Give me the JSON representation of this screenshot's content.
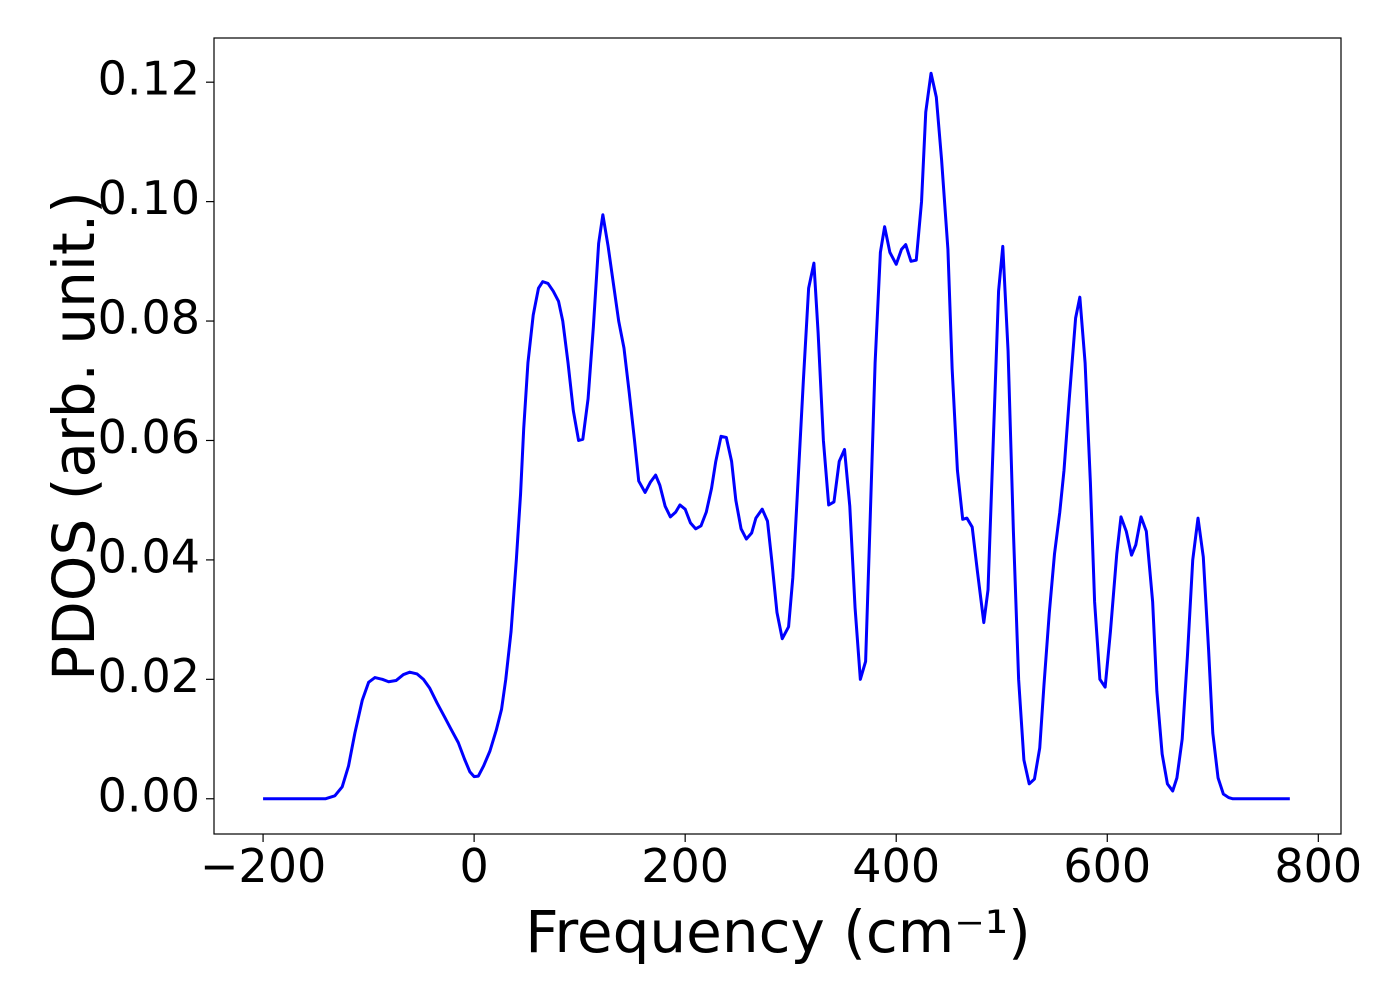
{
  "chart_data": {
    "type": "line",
    "xlabel": "Frequency (cm⁻¹)",
    "ylabel": "PDOS (arb. unit.)",
    "xlim": [
      -246.5,
      821.5
    ],
    "ylim": [
      -0.0059,
      0.1274
    ],
    "xticks": [
      {
        "value": -200,
        "label": "−200"
      },
      0,
      200,
      400,
      600,
      800
    ],
    "yticks": [
      {
        "value": 0,
        "label": "0.00"
      },
      0.02,
      0.04,
      0.06,
      0.08,
      {
        "value": 0.1,
        "label": "0.10"
      },
      0.12
    ],
    "x": [
      -200,
      -141,
      -132,
      -125,
      -119,
      -113,
      -106,
      -100,
      -94,
      -87,
      -81,
      -74,
      -67,
      -61,
      -54,
      -48,
      -42,
      -35,
      -28,
      -22,
      -15,
      -9,
      -4,
      0,
      4,
      9,
      15,
      21,
      26,
      30,
      35,
      40,
      44,
      47,
      51,
      56,
      61,
      65,
      70,
      75,
      80,
      84,
      89,
      94,
      99,
      103,
      108,
      113,
      118,
      122,
      127,
      133,
      137,
      142,
      147,
      152,
      156,
      162,
      167,
      172,
      176,
      181,
      186,
      191,
      195,
      200,
      205,
      210,
      215,
      220,
      225,
      229,
      234,
      239,
      244,
      248,
      253,
      258,
      263,
      267,
      273,
      278,
      282,
      287,
      292,
      298,
      302,
      306,
      312,
      317,
      322,
      326,
      331,
      336,
      341,
      346,
      351,
      356,
      361,
      366,
      371,
      375,
      380,
      385,
      389,
      394,
      400,
      405,
      409,
      414,
      419,
      424,
      428,
      433,
      438,
      443,
      449,
      453,
      458,
      463,
      467,
      472,
      477,
      483,
      487,
      492,
      497,
      501,
      506,
      511,
      516,
      521,
      526,
      531,
      536,
      540,
      545,
      550,
      555,
      559,
      564,
      570,
      574,
      579,
      584,
      588,
      593,
      598,
      603,
      609,
      613,
      618,
      623,
      627,
      632,
      637,
      643,
      647,
      652,
      657,
      662,
      666,
      671,
      676,
      681,
      686,
      691,
      696,
      700,
      705,
      710,
      715,
      719,
      773
    ],
    "series": [
      {
        "color": "#0000ff",
        "values": [
          0,
          0,
          0.0005,
          0.002,
          0.0055,
          0.011,
          0.0165,
          0.0195,
          0.0203,
          0.02,
          0.0196,
          0.0198,
          0.0208,
          0.0212,
          0.0209,
          0.02,
          0.0185,
          0.016,
          0.0137,
          0.0117,
          0.0094,
          0.0066,
          0.0045,
          0.0037,
          0.0038,
          0.0055,
          0.008,
          0.0115,
          0.015,
          0.02,
          0.028,
          0.04,
          0.051,
          0.062,
          0.073,
          0.081,
          0.0855,
          0.0866,
          0.0863,
          0.085,
          0.0833,
          0.08,
          0.073,
          0.065,
          0.06,
          0.0602,
          0.067,
          0.079,
          0.093,
          0.0978,
          0.0925,
          0.085,
          0.08,
          0.0755,
          0.068,
          0.06,
          0.0532,
          0.0513,
          0.053,
          0.0542,
          0.0525,
          0.049,
          0.0472,
          0.048,
          0.0492,
          0.0485,
          0.0462,
          0.0452,
          0.0457,
          0.048,
          0.052,
          0.0565,
          0.0607,
          0.0605,
          0.0565,
          0.05,
          0.0452,
          0.0435,
          0.0445,
          0.047,
          0.0485,
          0.0465,
          0.04,
          0.0312,
          0.0268,
          0.0288,
          0.037,
          0.05,
          0.07,
          0.0855,
          0.0897,
          0.078,
          0.06,
          0.0492,
          0.0497,
          0.0565,
          0.0585,
          0.049,
          0.032,
          0.02,
          0.023,
          0.045,
          0.073,
          0.0915,
          0.0958,
          0.0915,
          0.0895,
          0.092,
          0.0928,
          0.09,
          0.0902,
          0.1,
          0.115,
          0.1215,
          0.1175,
          0.107,
          0.092,
          0.072,
          0.055,
          0.0468,
          0.047,
          0.0455,
          0.038,
          0.0295,
          0.035,
          0.06,
          0.085,
          0.0925,
          0.075,
          0.045,
          0.02,
          0.0065,
          0.0025,
          0.0033,
          0.0085,
          0.019,
          0.031,
          0.041,
          0.048,
          0.055,
          0.067,
          0.0805,
          0.084,
          0.073,
          0.053,
          0.033,
          0.02,
          0.0187,
          0.028,
          0.041,
          0.0472,
          0.0448,
          0.0408,
          0.0425,
          0.0472,
          0.0448,
          0.033,
          0.018,
          0.0075,
          0.0025,
          0.0013,
          0.0035,
          0.01,
          0.024,
          0.04,
          0.047,
          0.0405,
          0.025,
          0.011,
          0.0035,
          0.0008,
          0.0002,
          0,
          0
        ]
      }
    ]
  }
}
